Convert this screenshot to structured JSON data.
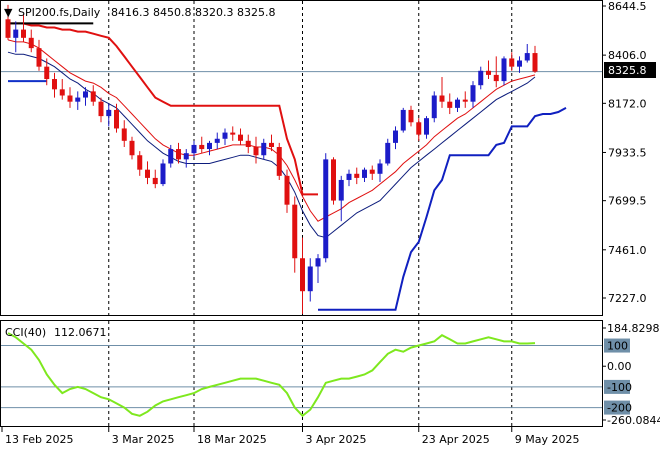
{
  "header": {
    "symbol_label": "SPI200.fs,Daily",
    "ohlc_label": "8416.3 8450.8 8320.3 8325.8"
  },
  "price_badge": "8325.8",
  "cci_header": {
    "label": "CCI(40)",
    "value_label": "112.0671"
  },
  "colors": {
    "bull": "#1c1cc8",
    "bear": "#e01010",
    "slow_ma": "#e01010",
    "fast_ma": "#0c1c7c",
    "stop": "#1020c0",
    "cci": "#7ee81e",
    "grid": "#000000"
  },
  "chart_data": [
    {
      "type": "candlestick",
      "title": "SPI200.fs,Daily",
      "ylim": [
        7110,
        8700
      ],
      "y_ticks": [
        "8644.5",
        "8406.0",
        "8172.0",
        "7933.5",
        "7699.5",
        "7461.0",
        "7227.0"
      ],
      "x_tick_labels": [
        "13 Feb 2025",
        "3 Mar 2025",
        "18 Mar 2025",
        "3 Apr 2025",
        "23 Apr 2025",
        "9 May 2025"
      ],
      "current_price": 8325.8,
      "candles": [
        [
          8580,
          8650,
          8480,
          8490
        ],
        [
          8490,
          8570,
          8420,
          8530
        ],
        [
          8530,
          8600,
          8470,
          8490
        ],
        [
          8490,
          8530,
          8420,
          8440
        ],
        [
          8440,
          8480,
          8330,
          8350
        ],
        [
          8350,
          8390,
          8260,
          8290
        ],
        [
          8290,
          8320,
          8200,
          8240
        ],
        [
          8240,
          8290,
          8190,
          8210
        ],
        [
          8210,
          8250,
          8150,
          8180
        ],
        [
          8180,
          8230,
          8140,
          8200
        ],
        [
          8200,
          8250,
          8160,
          8230
        ],
        [
          8230,
          8260,
          8160,
          8180
        ],
        [
          8180,
          8200,
          8080,
          8110
        ],
        [
          8110,
          8170,
          8060,
          8140
        ],
        [
          8140,
          8170,
          8030,
          8050
        ],
        [
          8050,
          8090,
          7960,
          7990
        ],
        [
          7990,
          8010,
          7900,
          7920
        ],
        [
          7920,
          7940,
          7820,
          7850
        ],
        [
          7850,
          7890,
          7780,
          7810
        ],
        [
          7810,
          7850,
          7760,
          7780
        ],
        [
          7780,
          7900,
          7770,
          7880
        ],
        [
          7880,
          7970,
          7860,
          7950
        ],
        [
          7950,
          7980,
          7880,
          7900
        ],
        [
          7900,
          7950,
          7860,
          7930
        ],
        [
          7930,
          7990,
          7910,
          7970
        ],
        [
          7970,
          8010,
          7930,
          7950
        ],
        [
          7950,
          7990,
          7920,
          7980
        ],
        [
          7980,
          8030,
          7950,
          8000
        ],
        [
          8000,
          8050,
          7970,
          8030
        ],
        [
          8030,
          8060,
          7990,
          8020
        ],
        [
          8020,
          8050,
          7970,
          7990
        ],
        [
          7990,
          8020,
          7930,
          7960
        ],
        [
          7960,
          8010,
          7880,
          7920
        ],
        [
          7920,
          8000,
          7900,
          7980
        ],
        [
          7980,
          8020,
          7940,
          7960
        ],
        [
          7960,
          7980,
          7800,
          7820
        ],
        [
          7820,
          7850,
          7640,
          7680
        ],
        [
          7680,
          7720,
          7350,
          7420
        ],
        [
          7420,
          7520,
          7150,
          7260
        ],
        [
          7260,
          7420,
          7210,
          7380
        ],
        [
          7380,
          7440,
          7300,
          7420
        ],
        [
          7420,
          7930,
          7400,
          7900
        ],
        [
          7900,
          7910,
          7680,
          7700
        ],
        [
          7700,
          7820,
          7600,
          7800
        ],
        [
          7800,
          7850,
          7770,
          7830
        ],
        [
          7830,
          7860,
          7780,
          7810
        ],
        [
          7810,
          7860,
          7790,
          7850
        ],
        [
          7850,
          7870,
          7800,
          7830
        ],
        [
          7830,
          7900,
          7790,
          7880
        ],
        [
          7880,
          8000,
          7870,
          7980
        ],
        [
          7980,
          8060,
          7950,
          8040
        ],
        [
          8040,
          8150,
          8030,
          8140
        ],
        [
          8140,
          8160,
          8060,
          8080
        ],
        [
          8080,
          8100,
          7990,
          8020
        ],
        [
          8020,
          8110,
          8000,
          8100
        ],
        [
          8100,
          8230,
          8080,
          8210
        ],
        [
          8210,
          8300,
          8150,
          8180
        ],
        [
          8180,
          8220,
          8120,
          8150
        ],
        [
          8150,
          8200,
          8130,
          8190
        ],
        [
          8190,
          8230,
          8150,
          8180
        ],
        [
          8180,
          8280,
          8150,
          8260
        ],
        [
          8260,
          8350,
          8240,
          8330
        ],
        [
          8330,
          8380,
          8290,
          8310
        ],
        [
          8310,
          8400,
          8250,
          8280
        ],
        [
          8280,
          8400,
          8260,
          8390
        ],
        [
          8390,
          8420,
          8330,
          8350
        ],
        [
          8350,
          8400,
          8320,
          8380
        ],
        [
          8380,
          8460,
          8370,
          8416
        ],
        [
          8416,
          8451,
          8320,
          8326
        ]
      ],
      "series": [
        {
          "name": "",
          "values": [
            8480,
            8470,
            8470,
            8460,
            8440,
            8410,
            8380,
            8350,
            8320,
            8300,
            8280,
            8270,
            8250,
            8220,
            8200,
            8160,
            8120,
            8080,
            8040,
            8000,
            7970,
            7950,
            7930,
            7920,
            7920,
            7930,
            7940,
            7950,
            7960,
            7970,
            7970,
            7970,
            7960,
            7960,
            7950,
            7920,
            7870,
            7800,
            7720,
            7650,
            7600,
            7620,
            7640,
            7660,
            7690,
            7710,
            7730,
            7750,
            7780,
            7810,
            7840,
            7880,
            7910,
            7940,
            7970,
            8010,
            8040,
            8070,
            8100,
            8120,
            8150,
            8180,
            8210,
            8240,
            8260,
            8280,
            8290,
            8300,
            8310
          ]
        },
        {
          "name": "",
          "values": [
            8420,
            8410,
            8410,
            8400,
            8390,
            8370,
            8350,
            8320,
            8290,
            8270,
            8240,
            8220,
            8190,
            8170,
            8150,
            8110,
            8070,
            8030,
            7990,
            7960,
            7930,
            7910,
            7890,
            7880,
            7880,
            7880,
            7880,
            7890,
            7900,
            7910,
            7920,
            7920,
            7910,
            7900,
            7890,
            7860,
            7810,
            7740,
            7650,
            7580,
            7530,
            7520,
            7550,
            7580,
            7610,
            7640,
            7660,
            7680,
            7700,
            7740,
            7780,
            7820,
            7860,
            7890,
            7920,
            7950,
            7980,
            8010,
            8040,
            8070,
            8100,
            8130,
            8160,
            8190,
            8210,
            8230,
            8250,
            8270,
            8300
          ]
        },
        {
          "name": "",
          "values": [
            8560,
            8560,
            8560,
            8550,
            8550,
            8540,
            8540,
            8530,
            8530,
            8520,
            8520,
            8510,
            8500,
            8490,
            8450,
            8400,
            8350,
            8300,
            8250,
            8200,
            8180,
            8160,
            8160,
            8160,
            8160,
            8160,
            8160,
            8160,
            8160,
            8160,
            8160,
            8160,
            8160,
            8160,
            8160,
            8160,
            8000,
            7900,
            7730,
            7730,
            7730
          ]
        },
        {
          "name": "",
          "start_index": 0,
          "values": [
            8280,
            8280,
            8280,
            8280,
            8280,
            8280
          ]
        },
        {
          "name": "",
          "start_index": 40,
          "values": [
            7170,
            7170,
            7170,
            7170,
            7170,
            7170,
            7170,
            7170,
            7170,
            7170,
            7170,
            7330,
            7450,
            7500,
            7620,
            7750,
            7800,
            7920,
            7920,
            7920,
            7920,
            7920,
            7920,
            7970,
            7980,
            8060,
            8060,
            8060,
            8110,
            8120,
            8120,
            8130,
            8150
          ]
        }
      ]
    },
    {
      "type": "line",
      "title": "CCI(40)",
      "ylim": [
        -270,
        195
      ],
      "y_ticks": [
        "184.8298",
        "100",
        "0.00",
        "-100",
        "-200",
        "-260.0844"
      ],
      "levels": [
        100,
        -100,
        -200
      ],
      "series": [
        {
          "name": "",
          "values": [
            160,
            140,
            110,
            80,
            30,
            -40,
            -90,
            -130,
            -110,
            -100,
            -110,
            -130,
            -150,
            -160,
            -180,
            -200,
            -230,
            -240,
            -220,
            -190,
            -170,
            -160,
            -150,
            -140,
            -130,
            -110,
            -100,
            -90,
            -80,
            -70,
            -60,
            -60,
            -60,
            -70,
            -80,
            -90,
            -130,
            -200,
            -240,
            -210,
            -150,
            -80,
            -70,
            -60,
            -60,
            -50,
            -40,
            -20,
            20,
            60,
            80,
            70,
            90,
            100,
            110,
            120,
            150,
            130,
            110,
            110,
            120,
            130,
            140,
            130,
            120,
            120,
            110,
            110,
            112
          ]
        }
      ]
    }
  ]
}
